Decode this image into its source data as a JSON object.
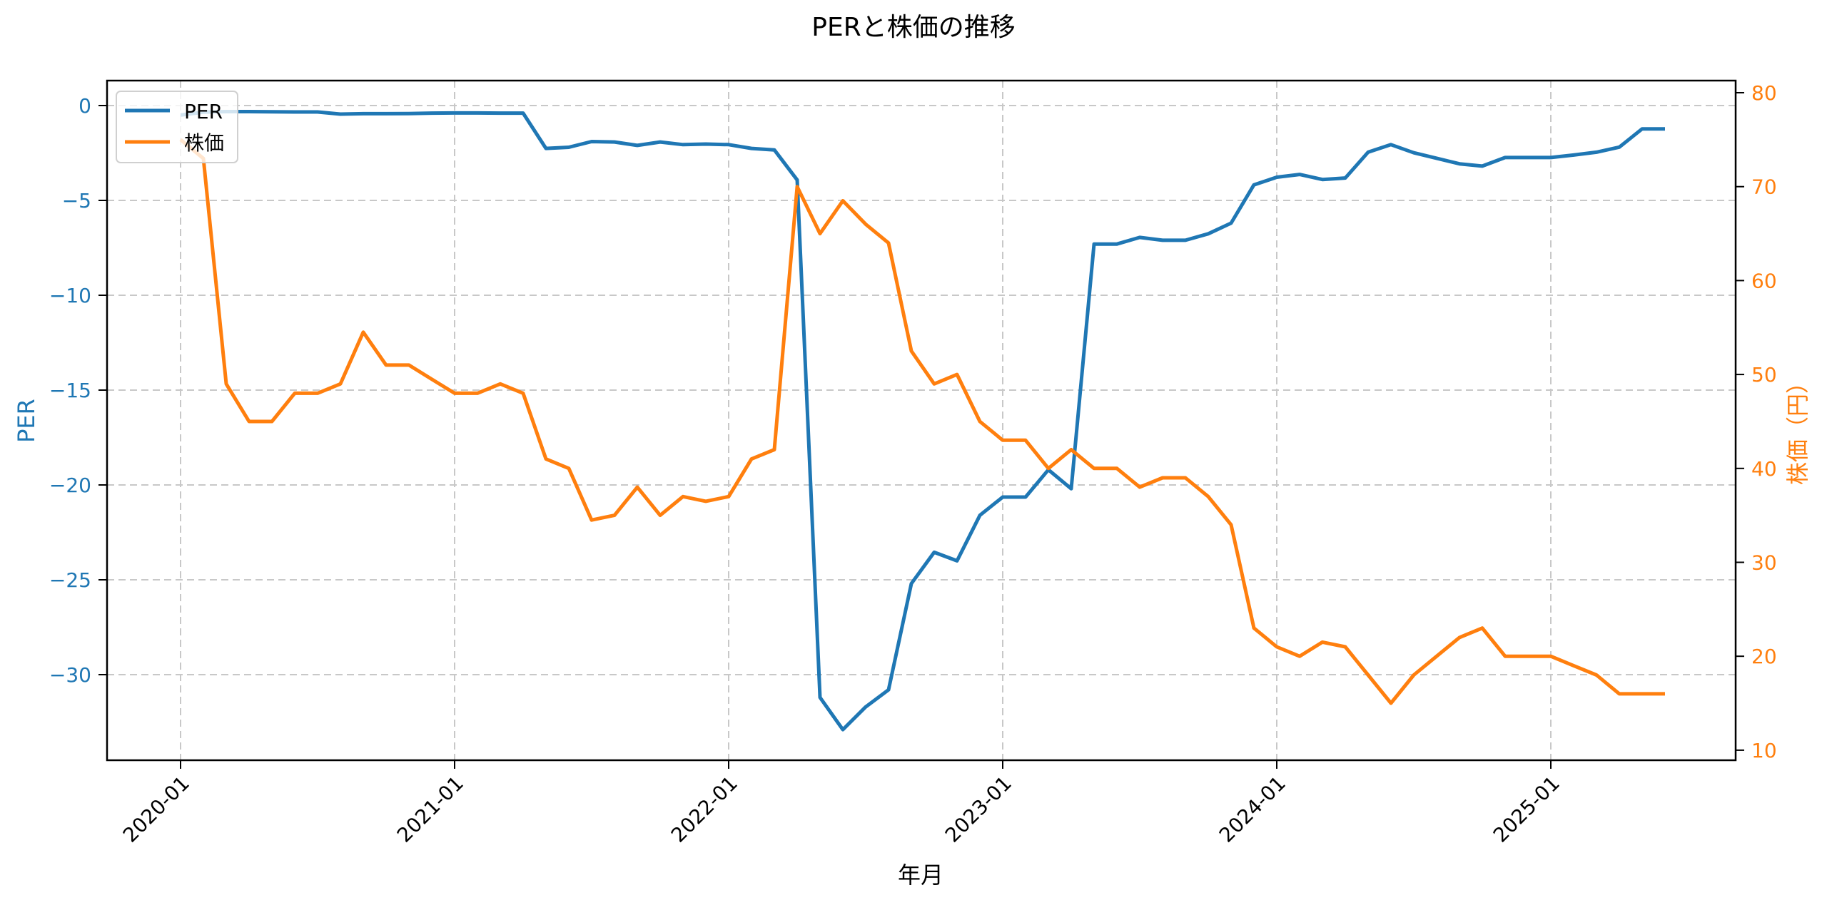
{
  "chart_data": {
    "type": "line",
    "title": "PERと株価の推移",
    "xlabel": "年月",
    "ylabel_left": "PER",
    "ylabel_right": "株価（円）",
    "ylim_left": [
      -34.8,
      1.2
    ],
    "ylim_right": [
      9.0,
      81.0
    ],
    "yticks_left": [
      0,
      -5,
      -10,
      -15,
      -20,
      -25,
      -30
    ],
    "yticks_left_labels": [
      "0",
      "−5",
      "−10",
      "−15",
      "−20",
      "−25",
      "−30"
    ],
    "yticks_right": [
      10,
      20,
      30,
      40,
      50,
      60,
      70,
      80
    ],
    "xticks": [
      "2020-01",
      "2021-01",
      "2022-01",
      "2023-01",
      "2024-01",
      "2025-01"
    ],
    "grid": true,
    "grid_style": "dashed",
    "legend_position": "upper left",
    "legend": [
      "PER",
      "株価"
    ],
    "x": [
      "2020-01",
      "2020-02",
      "2020-03",
      "2020-04",
      "2020-05",
      "2020-06",
      "2020-07",
      "2020-08",
      "2020-09",
      "2020-10",
      "2020-11",
      "2020-12",
      "2021-01",
      "2021-02",
      "2021-03",
      "2021-04",
      "2021-05",
      "2021-06",
      "2021-07",
      "2021-08",
      "2021-09",
      "2021-10",
      "2021-11",
      "2021-12",
      "2022-01",
      "2022-02",
      "2022-03",
      "2022-04",
      "2022-05",
      "2022-06",
      "2022-07",
      "2022-08",
      "2022-09",
      "2022-10",
      "2022-11",
      "2022-12",
      "2023-01",
      "2023-02",
      "2023-03",
      "2023-04",
      "2023-05",
      "2023-06",
      "2023-07",
      "2023-08",
      "2023-09",
      "2023-10",
      "2023-11",
      "2023-12",
      "2024-01",
      "2024-02",
      "2024-03",
      "2024-04",
      "2024-05",
      "2024-06",
      "2024-07",
      "2024-08",
      "2024-09",
      "2024-10",
      "2024-11",
      "2024-12",
      "2025-01",
      "2025-02",
      "2025-03",
      "2025-04",
      "2025-05",
      "2025-06"
    ],
    "series": [
      {
        "name": "PER",
        "axis": "left",
        "color": "#1f77b4",
        "values": [
          -0.5,
          -0.35,
          -0.32,
          -0.32,
          -0.33,
          -0.34,
          -0.34,
          -0.45,
          -0.43,
          -0.43,
          -0.42,
          -0.4,
          -0.39,
          -0.39,
          -0.4,
          -0.4,
          -2.26,
          -2.2,
          -1.9,
          -1.92,
          -2.1,
          -1.92,
          -2.06,
          -2.03,
          -2.06,
          -2.26,
          -2.34,
          -3.92,
          -31.2,
          -32.9,
          -31.7,
          -30.8,
          -25.2,
          -23.55,
          -24.0,
          -21.6,
          -20.64,
          -20.64,
          -19.2,
          -20.2,
          -7.3,
          -7.3,
          -6.95,
          -7.1,
          -7.1,
          -6.76,
          -6.2,
          -4.18,
          -3.78,
          -3.63,
          -3.9,
          -3.82,
          -2.46,
          -2.06,
          -2.49,
          -2.78,
          -3.07,
          -3.19,
          -2.74,
          -2.74,
          -2.74,
          -2.61,
          -2.46,
          -2.19,
          -1.23,
          -1.23
        ]
      },
      {
        "name": "株価",
        "axis": "right",
        "color": "#ff7f0e",
        "values": [
          75,
          73,
          49,
          45,
          45,
          48,
          48,
          49,
          54.5,
          51,
          51,
          49.5,
          48,
          48,
          49,
          48,
          41,
          40,
          34.5,
          35,
          38,
          35,
          37,
          36.5,
          37,
          41,
          42,
          70,
          65,
          68.5,
          66,
          64,
          52.5,
          49,
          50,
          45,
          43,
          43,
          40,
          42,
          40,
          40,
          38,
          39,
          39,
          37,
          34,
          23,
          21,
          20,
          21.5,
          21,
          18,
          15,
          18,
          20,
          22,
          23,
          20,
          20,
          20,
          19,
          18,
          16,
          16,
          16
        ]
      }
    ]
  },
  "colors": {
    "per": "#1f77b4",
    "price": "#ff7f0e",
    "grid": "#c8c8c8",
    "axis": "#000000"
  }
}
